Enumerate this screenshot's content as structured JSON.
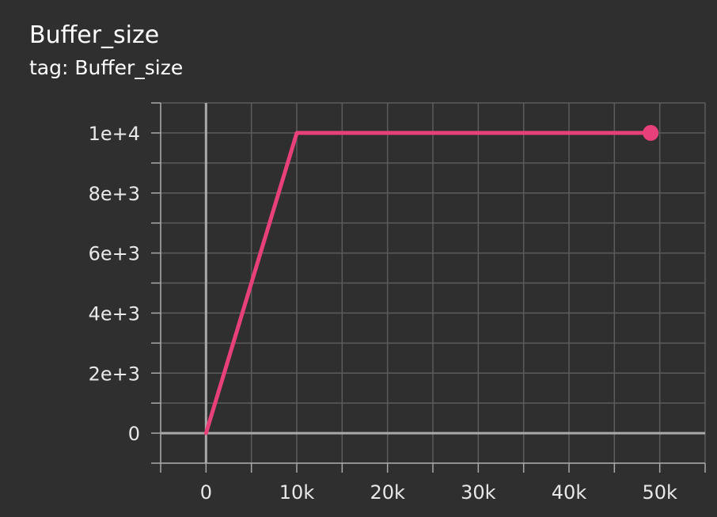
{
  "card": {
    "title": "Buffer_size",
    "subtitle": "tag: Buffer_size"
  },
  "colors": {
    "background": "#2f2f2f",
    "grid": "#5c5c5c",
    "axis": "#a9a9a9",
    "series": "#e8407a",
    "text": "#e8e8e8"
  },
  "chart_data": {
    "type": "line",
    "title": "Buffer_size",
    "xlabel": "",
    "ylabel": "",
    "xlim": [
      -5000,
      55000
    ],
    "ylim": [
      -1000,
      11000
    ],
    "x_ticks": [
      {
        "value": 0,
        "label": "0"
      },
      {
        "value": 10000,
        "label": "10k"
      },
      {
        "value": 20000,
        "label": "20k"
      },
      {
        "value": 30000,
        "label": "30k"
      },
      {
        "value": 40000,
        "label": "40k"
      },
      {
        "value": 50000,
        "label": "50k"
      }
    ],
    "y_ticks": [
      {
        "value": 0,
        "label": "0"
      },
      {
        "value": 2000,
        "label": "2e+3"
      },
      {
        "value": 4000,
        "label": "4e+3"
      },
      {
        "value": 6000,
        "label": "6e+3"
      },
      {
        "value": 8000,
        "label": "8e+3"
      },
      {
        "value": 10000,
        "label": "1e+4"
      }
    ],
    "grid": true,
    "series": [
      {
        "x": [
          0,
          10000,
          49000
        ],
        "y": [
          0,
          10000,
          10000
        ],
        "last_point_marker": true
      }
    ]
  }
}
